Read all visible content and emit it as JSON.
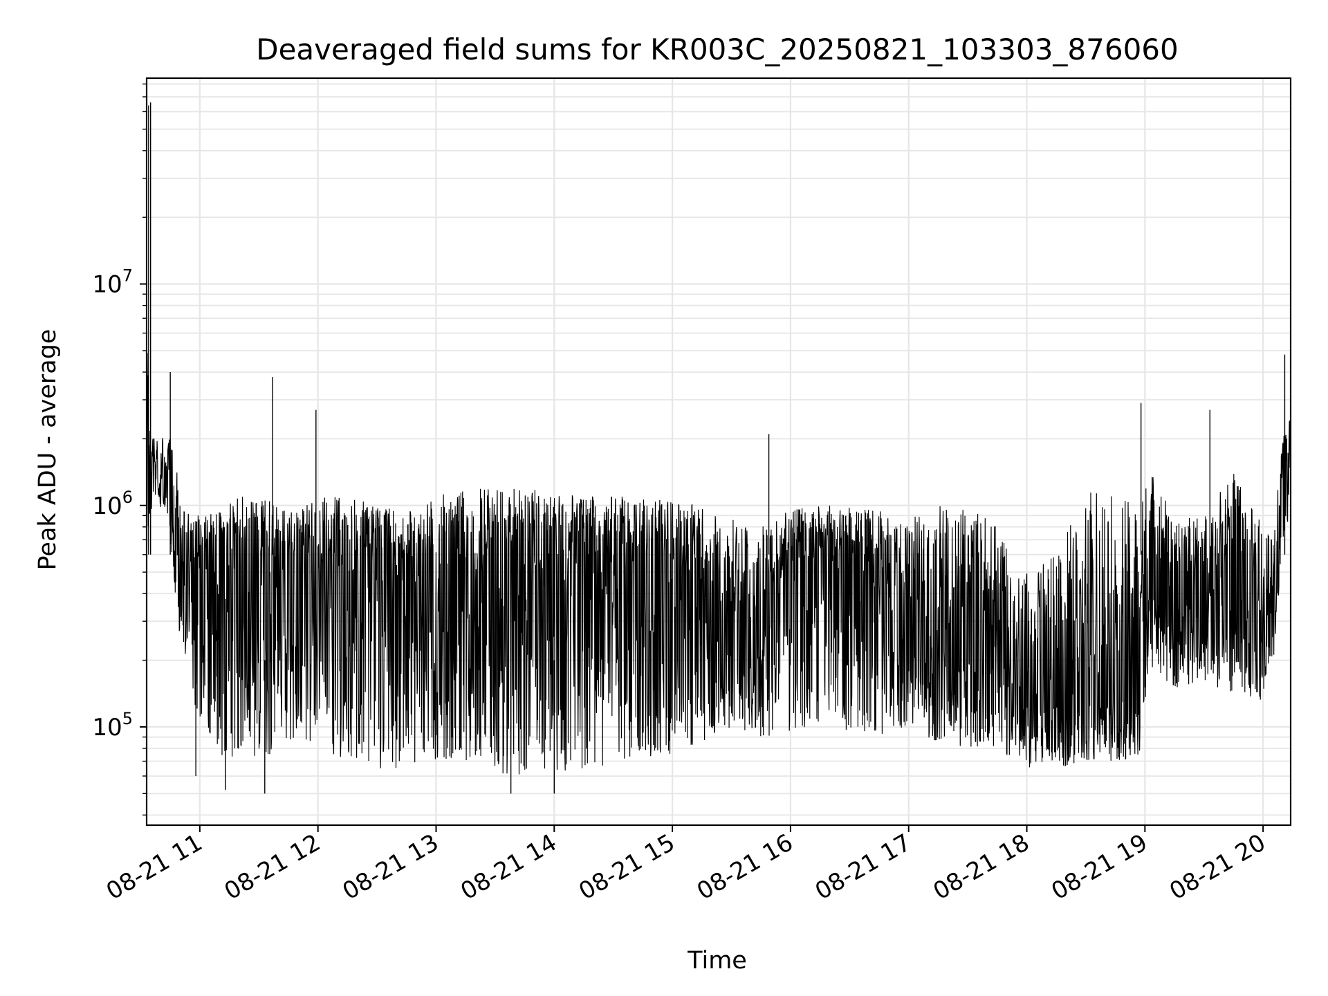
{
  "chart_data": {
    "type": "line",
    "title": "Deaveraged field sums for KR003C_20250821_103303_876060",
    "xlabel": "Time",
    "ylabel": "Peak ADU - average",
    "yscale": "log",
    "xlim": [
      "2025-08-21 10:33",
      "2025-08-21 20:14"
    ],
    "ylim": [
      36000,
      85000000
    ],
    "grid": true,
    "line_color": "#000000",
    "grid_color": "#e6e6e6",
    "x_ticks": [
      {
        "value": "2025-08-21 11:00",
        "label": "08-21 11"
      },
      {
        "value": "2025-08-21 12:00",
        "label": "08-21 12"
      },
      {
        "value": "2025-08-21 13:00",
        "label": "08-21 13"
      },
      {
        "value": "2025-08-21 14:00",
        "label": "08-21 14"
      },
      {
        "value": "2025-08-21 15:00",
        "label": "08-21 15"
      },
      {
        "value": "2025-08-21 16:00",
        "label": "08-21 16"
      },
      {
        "value": "2025-08-21 17:00",
        "label": "08-21 17"
      },
      {
        "value": "2025-08-21 18:00",
        "label": "08-21 18"
      },
      {
        "value": "2025-08-21 19:00",
        "label": "08-21 19"
      },
      {
        "value": "2025-08-21 20:00",
        "label": "08-21 20"
      }
    ],
    "y_ticks": [
      {
        "value": 100000,
        "base": "10",
        "exp": "5"
      },
      {
        "value": 1000000,
        "base": "10",
        "exp": "6"
      },
      {
        "value": 10000000,
        "base": "10",
        "exp": "7"
      }
    ],
    "series": [
      {
        "type": "envelope",
        "x": [
          "2025-08-21 10:33",
          "2025-08-21 10:35",
          "2025-08-21 10:38",
          "2025-08-21 10:42",
          "2025-08-21 10:46",
          "2025-08-21 10:50",
          "2025-08-21 10:55",
          "2025-08-21 11:00",
          "2025-08-21 11:10",
          "2025-08-21 11:20",
          "2025-08-21 11:30",
          "2025-08-21 11:40",
          "2025-08-21 11:50",
          "2025-08-21 12:00",
          "2025-08-21 12:15",
          "2025-08-21 12:30",
          "2025-08-21 12:45",
          "2025-08-21 13:00",
          "2025-08-21 13:15",
          "2025-08-21 13:30",
          "2025-08-21 13:45",
          "2025-08-21 14:00",
          "2025-08-21 14:15",
          "2025-08-21 14:30",
          "2025-08-21 14:45",
          "2025-08-21 15:00",
          "2025-08-21 15:15",
          "2025-08-21 15:30",
          "2025-08-21 15:45",
          "2025-08-21 16:00",
          "2025-08-21 16:15",
          "2025-08-21 16:30",
          "2025-08-21 16:45",
          "2025-08-21 17:00",
          "2025-08-21 17:15",
          "2025-08-21 17:30",
          "2025-08-21 17:45",
          "2025-08-21 18:00",
          "2025-08-21 18:15",
          "2025-08-21 18:30",
          "2025-08-21 18:45",
          "2025-08-21 18:58",
          "2025-08-21 19:02",
          "2025-08-21 19:15",
          "2025-08-21 19:30",
          "2025-08-21 19:45",
          "2025-08-21 20:00",
          "2025-08-21 20:05",
          "2025-08-21 20:10",
          "2025-08-21 20:14"
        ],
        "low": [
          480000,
          900000,
          1000000,
          950000,
          600000,
          200000,
          150000,
          90000,
          70000,
          70000,
          75000,
          70000,
          75000,
          80000,
          70000,
          65000,
          65000,
          70000,
          65000,
          60000,
          55000,
          60000,
          65000,
          65000,
          70000,
          75000,
          80000,
          100000,
          90000,
          90000,
          100000,
          95000,
          90000,
          100000,
          85000,
          80000,
          80000,
          65000,
          65000,
          70000,
          70000,
          72000,
          180000,
          150000,
          160000,
          140000,
          130000,
          180000,
          700000,
          700000
        ],
        "mid": [
          1500000,
          1500000,
          1500000,
          1400000,
          1100000,
          600000,
          500000,
          500000,
          500000,
          500000,
          550000,
          550000,
          550000,
          500000,
          500000,
          500000,
          450000,
          350000,
          400000,
          450000,
          500000,
          500000,
          500000,
          550000,
          550000,
          550000,
          450000,
          250000,
          250000,
          550000,
          550000,
          450000,
          350000,
          300000,
          300000,
          300000,
          250000,
          150000,
          130000,
          130000,
          130000,
          130000,
          400000,
          350000,
          400000,
          500000,
          300000,
          300000,
          1300000,
          1800000
        ],
        "high": [
          6000000,
          2200000,
          2000000,
          2100000,
          2300000,
          1100000,
          900000,
          900000,
          950000,
          1100000,
          1100000,
          1000000,
          950000,
          1100000,
          1100000,
          1000000,
          950000,
          1100000,
          1200000,
          1200000,
          1200000,
          1150000,
          1100000,
          1100000,
          1100000,
          1050000,
          1000000,
          900000,
          800000,
          1000000,
          1000000,
          1000000,
          950000,
          900000,
          1000000,
          1000000,
          800000,
          500000,
          600000,
          1200000,
          1100000,
          1000000,
          1500000,
          900000,
          900000,
          1500000,
          800000,
          700000,
          2000000,
          2500000
        ]
      }
    ],
    "spikes": [
      {
        "x": "2025-08-21 10:34",
        "y": 64000000
      },
      {
        "x": "2025-08-21 10:35",
        "y": 66000000
      },
      {
        "x": "2025-08-21 10:45",
        "y": 4000000
      },
      {
        "x": "2025-08-21 11:37",
        "y": 3800000
      },
      {
        "x": "2025-08-21 11:59",
        "y": 2700000
      },
      {
        "x": "2025-08-21 15:49",
        "y": 2100000
      },
      {
        "x": "2025-08-21 18:58",
        "y": 2900000
      },
      {
        "x": "2025-08-21 19:33",
        "y": 2700000
      },
      {
        "x": "2025-08-21 20:11",
        "y": 4800000
      },
      {
        "x": "2025-08-21 13:38",
        "y": 50000
      },
      {
        "x": "2025-08-21 14:00",
        "y": 50000
      },
      {
        "x": "2025-08-21 11:33",
        "y": 50000
      },
      {
        "x": "2025-08-21 11:13",
        "y": 52000
      },
      {
        "x": "2025-08-21 10:58",
        "y": 60000
      }
    ]
  }
}
